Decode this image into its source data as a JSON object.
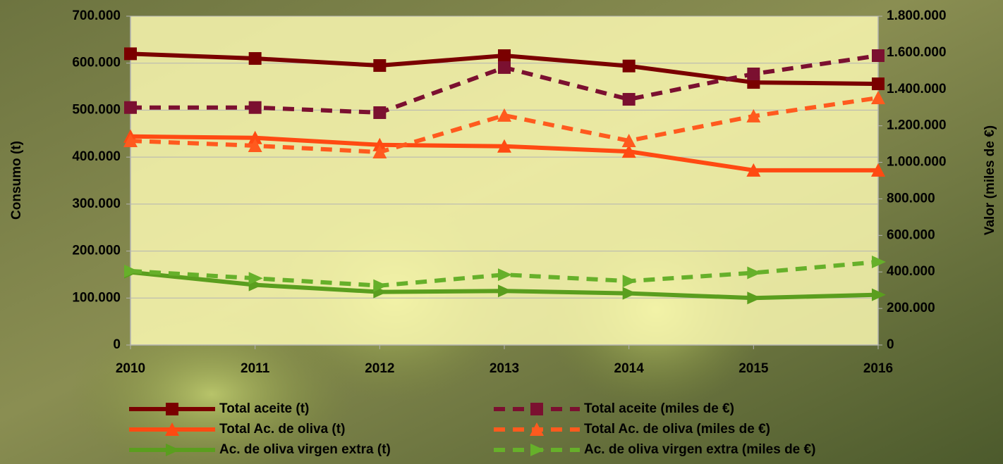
{
  "chart_data": {
    "type": "line",
    "categories": [
      "2010",
      "2011",
      "2012",
      "2013",
      "2014",
      "2015",
      "2016"
    ],
    "y_label": "Consumo (t)",
    "y2_label": "Valor (miles de €)",
    "ylim": [
      0,
      700000
    ],
    "yticks": [
      0,
      {
        "value": 100000,
        "label": "100.000"
      },
      {
        "value": 200000,
        "label": "200.000"
      },
      {
        "value": 300000,
        "label": "300.000"
      },
      {
        "value": 400000,
        "label": "400.000"
      },
      {
        "value": 500000,
        "label": "500.000"
      },
      {
        "value": 600000,
        "label": "600.000"
      },
      {
        "value": 700000,
        "label": "700.000"
      }
    ],
    "y2lim": [
      0,
      1800000
    ],
    "y2ticks": [
      0,
      {
        "value": 200000,
        "label": "200.000"
      },
      {
        "value": 400000,
        "label": "400.000"
      },
      {
        "value": 600000,
        "label": "600.000"
      },
      {
        "value": 800000,
        "label": "800.000"
      },
      {
        "value": 1000000,
        "label": "1.000.000"
      },
      {
        "value": 1200000,
        "label": "1.200.000"
      },
      {
        "value": 1400000,
        "label": "1.400.000"
      },
      {
        "value": 1600000,
        "label": "1.600.000"
      },
      {
        "value": 1800000,
        "label": "1.800.000"
      }
    ],
    "grid": true,
    "legend": "bottom",
    "series": [
      {
        "name": "Total aceite (t)",
        "color": "#7a0000",
        "dash": false,
        "marker": "square",
        "values": [
          620000,
          610000,
          595000,
          616000,
          594000,
          559000,
          556000
        ]
      },
      {
        "name": "Total aceite (miles de €)",
        "color": "#7b1030",
        "dash": true,
        "marker": "square",
        "axis": "y2",
        "values": [
          1300000,
          1300000,
          1272000,
          1519000,
          1345000,
          1484000,
          1584000
        ]
      },
      {
        "name": "Total Ac. de oliva (t)",
        "color": "#ff4a12",
        "dash": false,
        "marker": "triangle",
        "values": [
          444000,
          441000,
          426000,
          423000,
          412000,
          372000,
          372000
        ]
      },
      {
        "name": "Total Ac. de oliva (miles de €)",
        "color": "#ff5a1e",
        "dash": true,
        "marker": "triangle",
        "axis": "y2",
        "values": [
          1118000,
          1091000,
          1056000,
          1257000,
          1118000,
          1253000,
          1353000
        ]
      },
      {
        "name": "Ac. de oliva virgen extra (t)",
        "color": "#5a9e1e",
        "dash": false,
        "marker": "arrow",
        "values": [
          155000,
          128000,
          113000,
          115000,
          110000,
          100000,
          107000
        ]
      },
      {
        "name": "Ac. de oliva virgen extra (miles de €)",
        "color": "#66b02a",
        "dash": true,
        "marker": "arrow",
        "axis": "y2",
        "values": [
          405000,
          365000,
          325000,
          385000,
          350000,
          395000,
          455000
        ]
      }
    ]
  }
}
